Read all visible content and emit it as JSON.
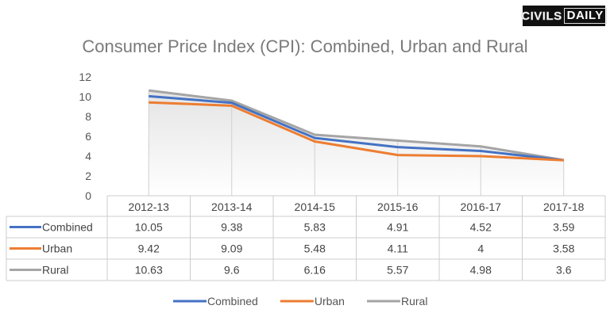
{
  "logo": {
    "part1": "CIVILS",
    "part2": "DAILY"
  },
  "chart_data": {
    "type": "line",
    "title": "Consumer Price Index (CPI): Combined, Urban and Rural",
    "categories": [
      "2012-13",
      "2013-14",
      "2014-15",
      "2015-16",
      "2016-17",
      "2017-18"
    ],
    "ylim": [
      0,
      12
    ],
    "yticks": [
      0,
      2,
      4,
      6,
      8,
      10,
      12
    ],
    "data_table": true,
    "legend": "bottom",
    "series": [
      {
        "name": "Combined",
        "color": "#4472c4",
        "values": [
          10.05,
          9.38,
          5.83,
          4.91,
          4.52,
          3.59
        ]
      },
      {
        "name": "Urban",
        "color": "#ed7d31",
        "values": [
          9.42,
          9.09,
          5.48,
          4.11,
          4,
          3.58
        ]
      },
      {
        "name": "Rural",
        "color": "#a5a5a5",
        "values": [
          10.63,
          9.6,
          6.16,
          5.57,
          4.98,
          3.6
        ]
      }
    ]
  }
}
